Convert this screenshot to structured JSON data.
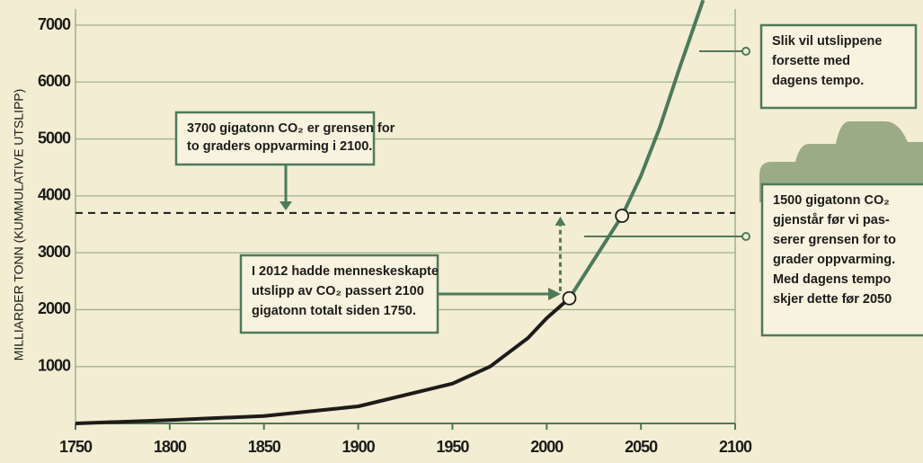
{
  "chart_data": {
    "type": "line",
    "y_label": "MILLIARDER TONN (KUMMULATIVE UTSLIPP)",
    "series": [
      {
        "color": "#1c1c1a",
        "x": [
          1750,
          1800,
          1850,
          1900,
          1950,
          1970,
          1990,
          2000,
          2012
        ],
        "values": [
          0,
          60,
          130,
          300,
          700,
          1000,
          1500,
          1850,
          2200
        ]
      },
      {
        "color": "#4e7a5a",
        "x": [
          2012,
          2040,
          2050,
          2060,
          2070,
          2083
        ],
        "values": [
          2200,
          3650,
          4350,
          5200,
          6200,
          7440
        ]
      }
    ],
    "threshold": 3700,
    "xlim": [
      1750,
      2100
    ],
    "xticks": [
      1750,
      1800,
      1850,
      1900,
      1950,
      2000,
      2050,
      2100
    ],
    "ylim": [
      0,
      7000
    ],
    "yticks": [
      1000,
      2000,
      3000,
      4000,
      5000,
      6000,
      7000
    ],
    "grid": true,
    "annotations": [
      {
        "lines": [
          "3700 gigatonn CO₂ er grensen for",
          "to graders oppvarming i 2100."
        ]
      },
      {
        "lines": [
          "I 2012 hadde menneskeskapte",
          "utslipp av CO₂ passert 2100",
          "gigatonn totalt siden 1750."
        ]
      },
      {
        "lines": [
          "Slik vil utslippene",
          "forsette med",
          "dagens tempo."
        ]
      },
      {
        "lines": [
          "1500 gigatonn CO₂",
          "gjenstår før vi pas-",
          "serer grensen for to",
          "grader oppvarming.",
          "Med dagens tempo",
          "skjer dette før 2050"
        ]
      }
    ]
  }
}
